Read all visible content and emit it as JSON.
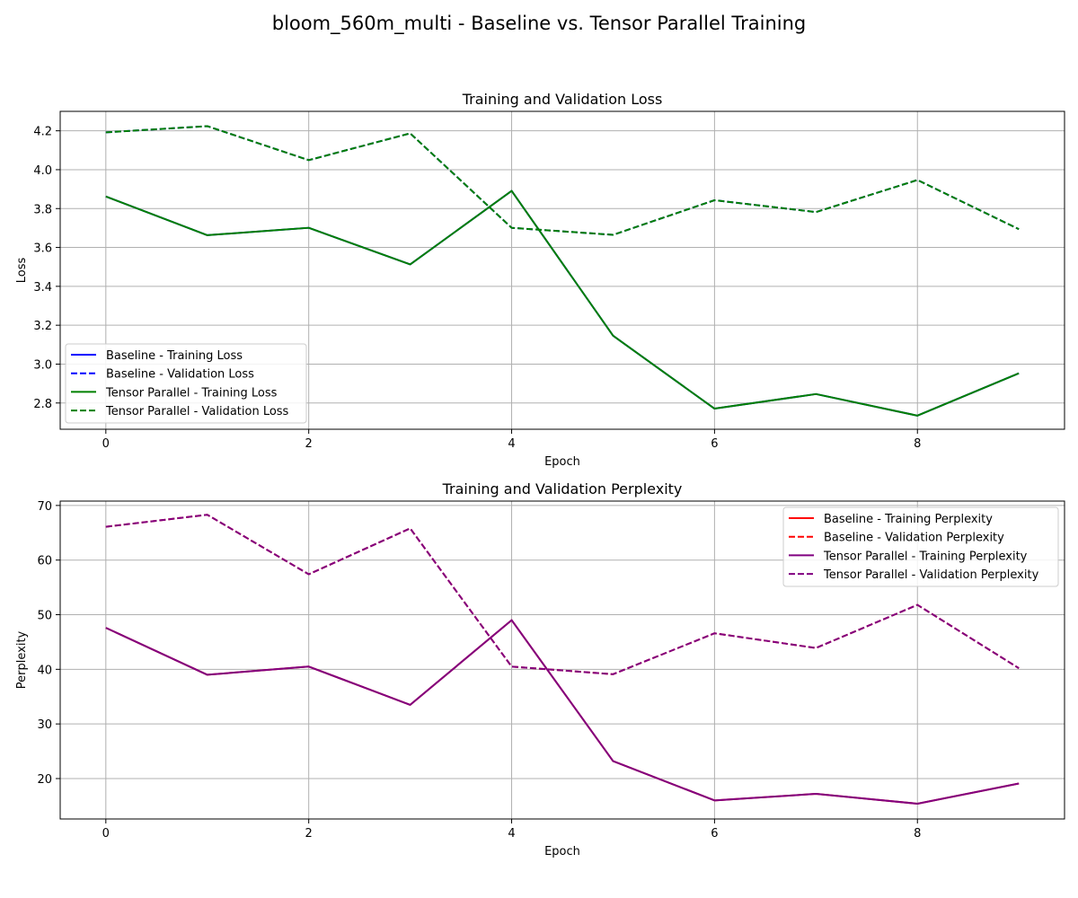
{
  "figure": {
    "title": "bloom_560m_multi - Baseline vs. Tensor Parallel Training"
  },
  "chart_data": [
    {
      "type": "line",
      "title": "Training and Validation Loss",
      "xlabel": "Epoch",
      "ylabel": "Loss",
      "x": [
        0,
        1,
        2,
        3,
        4,
        5,
        6,
        7,
        8,
        9
      ],
      "xlim": [
        -0.45,
        9.45
      ],
      "ylim": [
        2.665,
        4.3
      ],
      "xticks": [
        0,
        2,
        4,
        6,
        8
      ],
      "yticks": [
        2.8,
        3.0,
        3.2,
        3.4,
        3.6,
        3.8,
        4.0,
        4.2
      ],
      "ytick_format": 1,
      "grid": true,
      "legend_location": "lower-left",
      "series": [
        {
          "name": "Baseline - Training Loss",
          "color": "#0000ff",
          "linestyle": "solid",
          "values": [
            3.862,
            3.663,
            3.701,
            3.513,
            3.891,
            3.146,
            2.771,
            2.846,
            2.735,
            2.953
          ]
        },
        {
          "name": "Baseline - Validation Loss",
          "color": "#0000ff",
          "linestyle": "dashed",
          "values": [
            4.192,
            4.224,
            4.049,
            4.187,
            3.701,
            3.665,
            3.843,
            3.782,
            3.947,
            3.694
          ]
        },
        {
          "name": "Tensor Parallel - Training Loss",
          "color": "#008000",
          "linestyle": "solid",
          "values": [
            3.862,
            3.663,
            3.701,
            3.513,
            3.891,
            3.146,
            2.771,
            2.846,
            2.735,
            2.953
          ]
        },
        {
          "name": "Tensor Parallel - Validation Loss",
          "color": "#008000",
          "linestyle": "dashed",
          "values": [
            4.192,
            4.224,
            4.049,
            4.187,
            3.701,
            3.665,
            3.843,
            3.782,
            3.947,
            3.694
          ]
        }
      ]
    },
    {
      "type": "line",
      "title": "Training and Validation Perplexity",
      "xlabel": "Epoch",
      "ylabel": "Perplexity",
      "x": [
        0,
        1,
        2,
        3,
        4,
        5,
        6,
        7,
        8,
        9
      ],
      "xlim": [
        -0.45,
        9.45
      ],
      "ylim": [
        12.6,
        70.8
      ],
      "xticks": [
        0,
        2,
        4,
        6,
        8
      ],
      "yticks": [
        20,
        30,
        40,
        50,
        60,
        70
      ],
      "ytick_format": 0,
      "grid": true,
      "legend_location": "upper-right",
      "series": [
        {
          "name": "Baseline - Training Perplexity",
          "color": "#ff0000",
          "linestyle": "solid",
          "values": [
            47.6,
            39.0,
            40.5,
            33.5,
            49.0,
            23.2,
            16.0,
            17.2,
            15.4,
            19.1
          ]
        },
        {
          "name": "Baseline - Validation Perplexity",
          "color": "#ff0000",
          "linestyle": "dashed",
          "values": [
            66.1,
            68.3,
            57.4,
            65.8,
            40.5,
            39.1,
            46.6,
            43.9,
            51.8,
            40.2
          ]
        },
        {
          "name": "Tensor Parallel - Training Perplexity",
          "color": "#800080",
          "linestyle": "solid",
          "values": [
            47.6,
            39.0,
            40.5,
            33.5,
            49.0,
            23.2,
            16.0,
            17.2,
            15.4,
            19.1
          ]
        },
        {
          "name": "Tensor Parallel - Validation Perplexity",
          "color": "#800080",
          "linestyle": "dashed",
          "values": [
            66.1,
            68.3,
            57.4,
            65.8,
            40.5,
            39.1,
            46.6,
            43.9,
            51.8,
            40.2
          ]
        }
      ]
    }
  ]
}
